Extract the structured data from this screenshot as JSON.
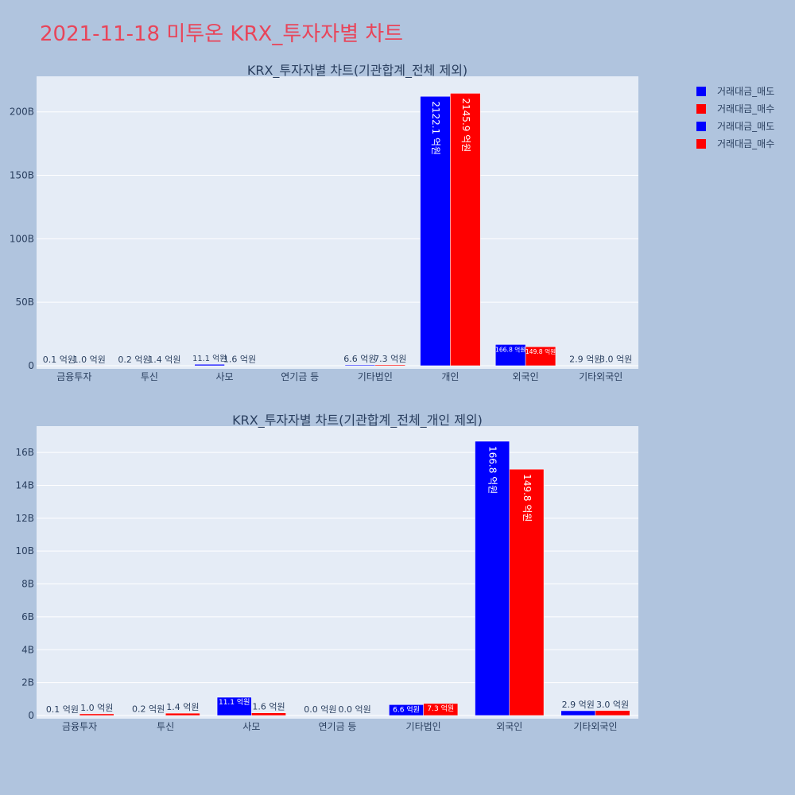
{
  "title": "2021-11-18 미투온 KRX_투자자별 차트",
  "legend": [
    {
      "name": "거래대금_매도",
      "color": "#0000ff"
    },
    {
      "name": "거래대금_매수",
      "color": "#ff0000"
    },
    {
      "name": "거래대금_매도",
      "color": "#0000ff"
    },
    {
      "name": "거래대금_매수",
      "color": "#ff0000"
    }
  ],
  "chart_data": [
    {
      "type": "bar",
      "title": "KRX_투자자별 차트(기관합계_전체 제외)",
      "categories": [
        "금융투자",
        "투신",
        "사모",
        "연기금 등",
        "기타법인",
        "개인",
        "외국인",
        "기타외국인"
      ],
      "series": [
        {
          "name": "거래대금_매도",
          "color": "#0000ff",
          "values": [
            10000000,
            20000000,
            1110000000,
            0,
            660000000,
            212210000000,
            16680000000,
            290000000
          ],
          "labels": [
            "0.1 억원",
            "0.2 억원",
            "11.1 억원",
            "",
            "6.6 억원",
            "2122.1 억원",
            "166.8 억원",
            "2.9 억원"
          ]
        },
        {
          "name": "거래대금_매수",
          "color": "#ff0000",
          "values": [
            100000000,
            140000000,
            160000000,
            0,
            730000000,
            214590000000,
            14980000000,
            300000000
          ],
          "labels": [
            "1.0 억원",
            "1.4 억원",
            "1.6 억원",
            "",
            "7.3 억원",
            "2145.9 억원",
            "149.8 억원",
            "3.0 억원"
          ]
        }
      ],
      "ylim": [
        0,
        228000000000
      ],
      "yticks": [
        0,
        50000000000,
        100000000000,
        150000000000,
        200000000000
      ],
      "yticklabels": [
        "0",
        "50B",
        "100B",
        "150B",
        "200B"
      ],
      "grid": true
    },
    {
      "type": "bar",
      "title": "KRX_투자자별 차트(기관합계_전체_개인 제외)",
      "categories": [
        "금융투자",
        "투신",
        "사모",
        "연기금 등",
        "기타법인",
        "외국인",
        "기타외국인"
      ],
      "series": [
        {
          "name": "거래대금_매도",
          "color": "#0000ff",
          "values": [
            10000000,
            20000000,
            1110000000,
            0,
            660000000,
            16680000000,
            290000000
          ],
          "labels": [
            "0.1 억원",
            "0.2 억원",
            "11.1 억원",
            "0.0 억원",
            "6.6 억원",
            "166.8 억원",
            "2.9 억원"
          ]
        },
        {
          "name": "거래대금_매수",
          "color": "#ff0000",
          "values": [
            100000000,
            140000000,
            160000000,
            0,
            730000000,
            14980000000,
            300000000
          ],
          "labels": [
            "1.0 억원",
            "1.4 억원",
            "1.6 억원",
            "0.0 억원",
            "7.3 억원",
            "149.8 억원",
            "3.0 억원"
          ]
        }
      ],
      "ylim": [
        0,
        17600000000
      ],
      "yticks": [
        0,
        2000000000,
        4000000000,
        6000000000,
        8000000000,
        10000000000,
        12000000000,
        14000000000,
        16000000000
      ],
      "yticklabels": [
        "0",
        "2B",
        "4B",
        "6B",
        "8B",
        "10B",
        "12B",
        "14B",
        "16B"
      ],
      "grid": true
    }
  ]
}
